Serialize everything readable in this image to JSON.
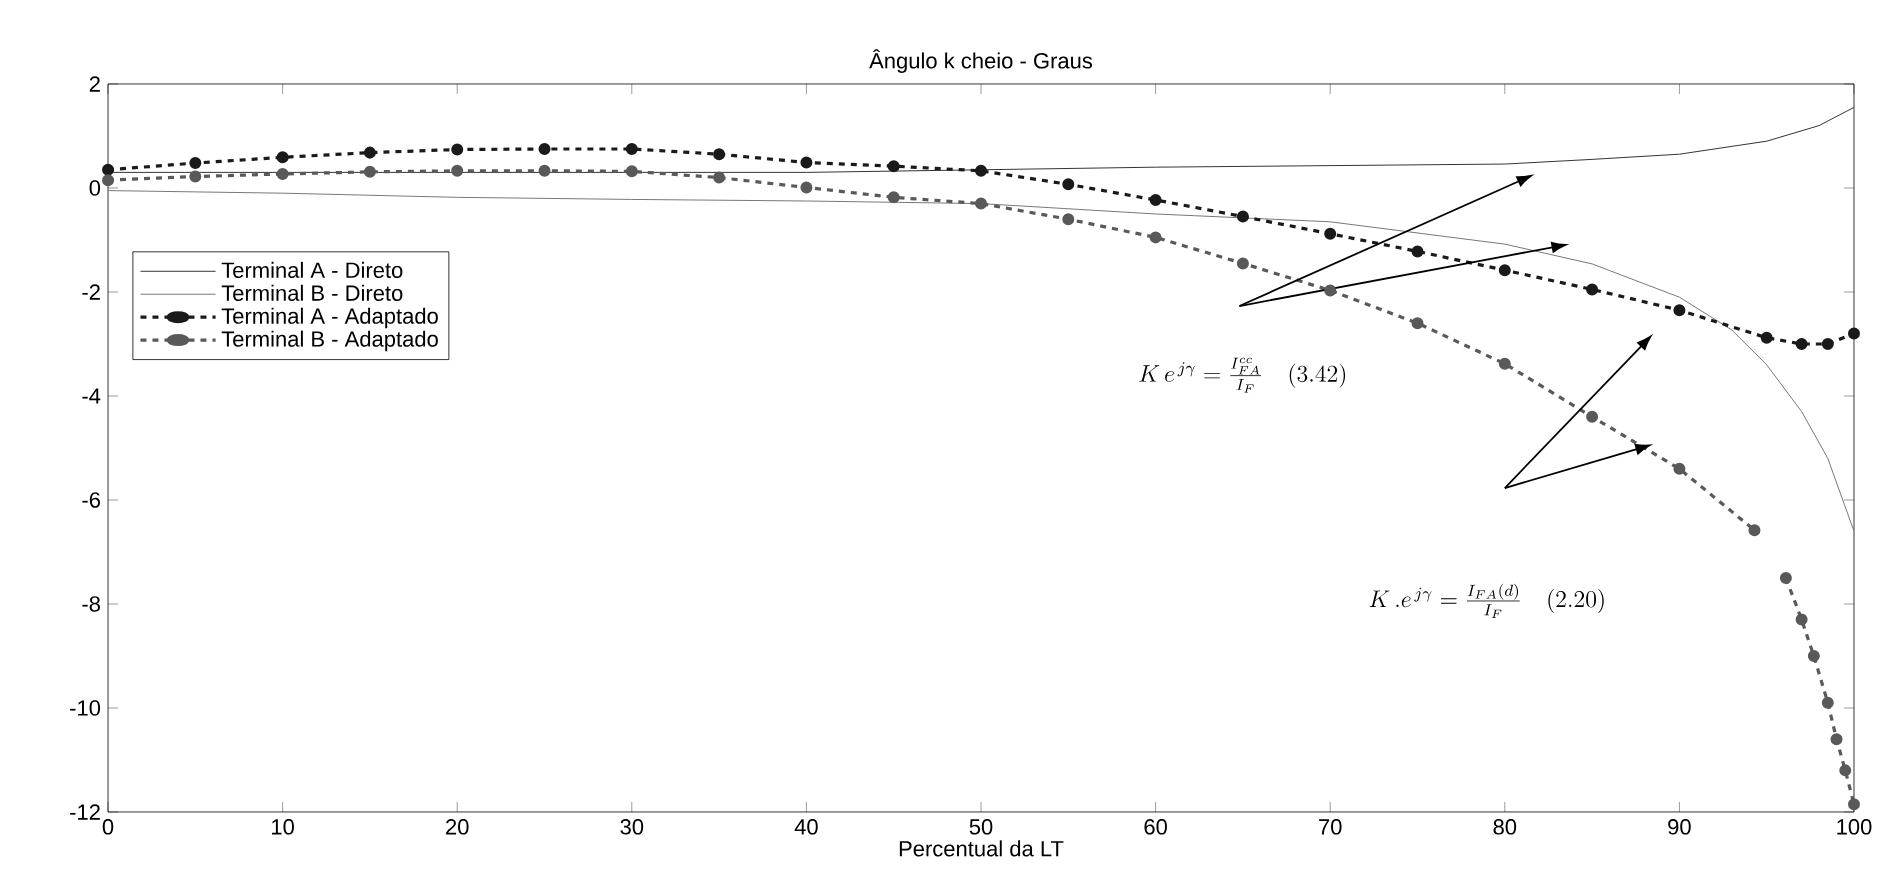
{
  "chart_data": {
    "type": "line",
    "title": "Ângulo k cheio - Graus",
    "xlabel": "Percentual da LT",
    "xlim": [
      0,
      100
    ],
    "ylim": [
      -12,
      2
    ],
    "xticks": [
      0,
      10,
      20,
      30,
      40,
      50,
      60,
      70,
      80,
      90,
      100
    ],
    "yticks": [
      -12,
      -10,
      -8,
      -6,
      -4,
      -2,
      0,
      2
    ],
    "grid": false,
    "legend": "top left",
    "annotations": [
      "K\\,e^{\\,j\\gamma} = \\frac{I_{FA}^{cc}}{I_F}\\quad (3.42)",
      "K\\,.e^{\\,j\\gamma} = \\frac{I_{FA}(d)}{I_F}\\quad (2.20)"
    ],
    "series": [
      {
        "name": "Terminal A - Direto",
        "color": "#333333",
        "line_style": "solid",
        "marker": "none",
        "x": [
          0,
          10,
          20,
          30,
          40,
          50,
          60,
          70,
          80,
          85,
          90,
          95,
          98,
          100
        ],
        "values": [
          0.3,
          0.3,
          0.3,
          0.3,
          0.3,
          0.35,
          0.4,
          0.43,
          0.46,
          0.55,
          0.65,
          0.9,
          1.2,
          1.55
        ]
      },
      {
        "name": "Terminal B - Direto",
        "color": "#777777",
        "line_style": "solid",
        "marker": "none",
        "x": [
          0,
          10,
          20,
          30,
          40,
          50,
          60,
          70,
          80,
          85,
          90,
          93,
          95,
          97,
          98.5,
          100
        ],
        "values": [
          -0.05,
          -0.1,
          -0.18,
          -0.22,
          -0.25,
          -0.3,
          -0.5,
          -0.65,
          -1.08,
          -1.46,
          -2.1,
          -2.73,
          -3.4,
          -4.3,
          -5.2,
          -6.6
        ]
      },
      {
        "name": "Terminal A - Adaptado",
        "color": "#1a1a1a",
        "line_style": "dashed",
        "marker": "circle",
        "x": [
          0,
          5,
          10,
          15,
          20,
          25,
          30,
          35,
          40,
          45,
          50,
          55,
          60,
          65,
          70,
          75,
          80,
          85,
          90,
          95,
          97,
          98.5,
          100
        ],
        "values": [
          0.35,
          0.48,
          0.59,
          0.68,
          0.74,
          0.75,
          0.75,
          0.65,
          0.49,
          0.42,
          0.33,
          0.07,
          -0.23,
          -0.55,
          -0.88,
          -1.22,
          -1.58,
          -1.95,
          -2.35,
          -2.88,
          -3.0,
          -3.0,
          -2.8
        ]
      },
      {
        "name": "Terminal B - Adaptado",
        "color": "#595959",
        "line_style": "dashed",
        "marker": "circle",
        "x": [
          0,
          5,
          10,
          15,
          20,
          25,
          30,
          35,
          40,
          45,
          50,
          55,
          60,
          65,
          70,
          75,
          80,
          85,
          90,
          94.3,
          95.2,
          96.1,
          97,
          97.7,
          98.5,
          99,
          99.5,
          100
        ],
        "values": [
          0.15,
          0.22,
          0.27,
          0.31,
          0.33,
          0.33,
          0.32,
          0.2,
          0.01,
          -0.18,
          -0.3,
          -0.6,
          -0.95,
          -1.45,
          -1.97,
          -2.6,
          -3.38,
          -4.4,
          -5.4,
          -6.58,
          null,
          -7.5,
          -8.3,
          -9.0,
          -9.9,
          -10.6,
          -11.2,
          -11.85
        ]
      }
    ]
  }
}
